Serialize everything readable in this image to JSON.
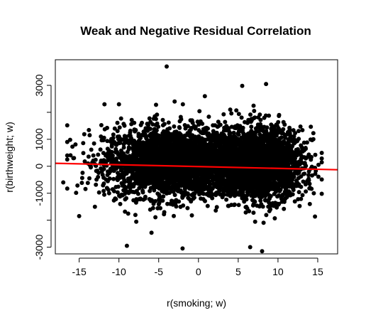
{
  "chart_data": {
    "type": "scatter",
    "title": "Weak and Negative Residual Correlation",
    "xlabel": "r(smoking; w)",
    "ylabel": "r(birthweight; w)",
    "xlim": [
      -18,
      17.5
    ],
    "ylim": [
      -3250,
      3950
    ],
    "xticks": [
      -15,
      -10,
      -5,
      0,
      5,
      10,
      15
    ],
    "xtick_labels": [
      "-15",
      "-10",
      "-5",
      "0",
      "5",
      "10",
      "15"
    ],
    "yticks": [
      -3000,
      -1000,
      0,
      1000,
      3000
    ],
    "ytick_labels": [
      "-3000",
      "-1000",
      "0",
      "1000",
      "3000"
    ],
    "grid": false,
    "legend": "none",
    "point_color": "#000000",
    "fit_line": {
      "color": "#ff0000",
      "x": [
        -18,
        17.5
      ],
      "y": [
        110,
        -130
      ]
    },
    "clusters": [
      {
        "x_center": -3.5,
        "x_spread": 4.2,
        "y_center": 150,
        "y_spread": 650,
        "count": 2600
      },
      {
        "x_center": 8.0,
        "x_spread": 2.6,
        "y_center": 100,
        "y_spread": 650,
        "count": 2100
      },
      {
        "x_center": 3.5,
        "x_spread": 3.5,
        "y_center": 100,
        "y_spread": 550,
        "count": 700
      }
    ],
    "outliers": [
      {
        "x": -4.0,
        "y": 3700
      },
      {
        "x": 8.5,
        "y": 3050
      },
      {
        "x": 5.5,
        "y": 2980
      },
      {
        "x": 0.8,
        "y": 2600
      },
      {
        "x": -3.0,
        "y": 2400
      },
      {
        "x": -10.0,
        "y": 2300
      },
      {
        "x": 7.0,
        "y": 2050
      },
      {
        "x": 4.0,
        "y": 2100
      },
      {
        "x": -16.5,
        "y": 400
      },
      {
        "x": -17.0,
        "y": -600
      },
      {
        "x": -15.0,
        "y": -1850
      },
      {
        "x": 14.5,
        "y": -1000
      },
      {
        "x": 14.0,
        "y": -1400
      },
      {
        "x": 13.0,
        "y": 700
      },
      {
        "x": -9.0,
        "y": -2950
      },
      {
        "x": 8.0,
        "y": -3150
      },
      {
        "x": -2.0,
        "y": -3050
      },
      {
        "x": 6.5,
        "y": -3000
      }
    ]
  }
}
